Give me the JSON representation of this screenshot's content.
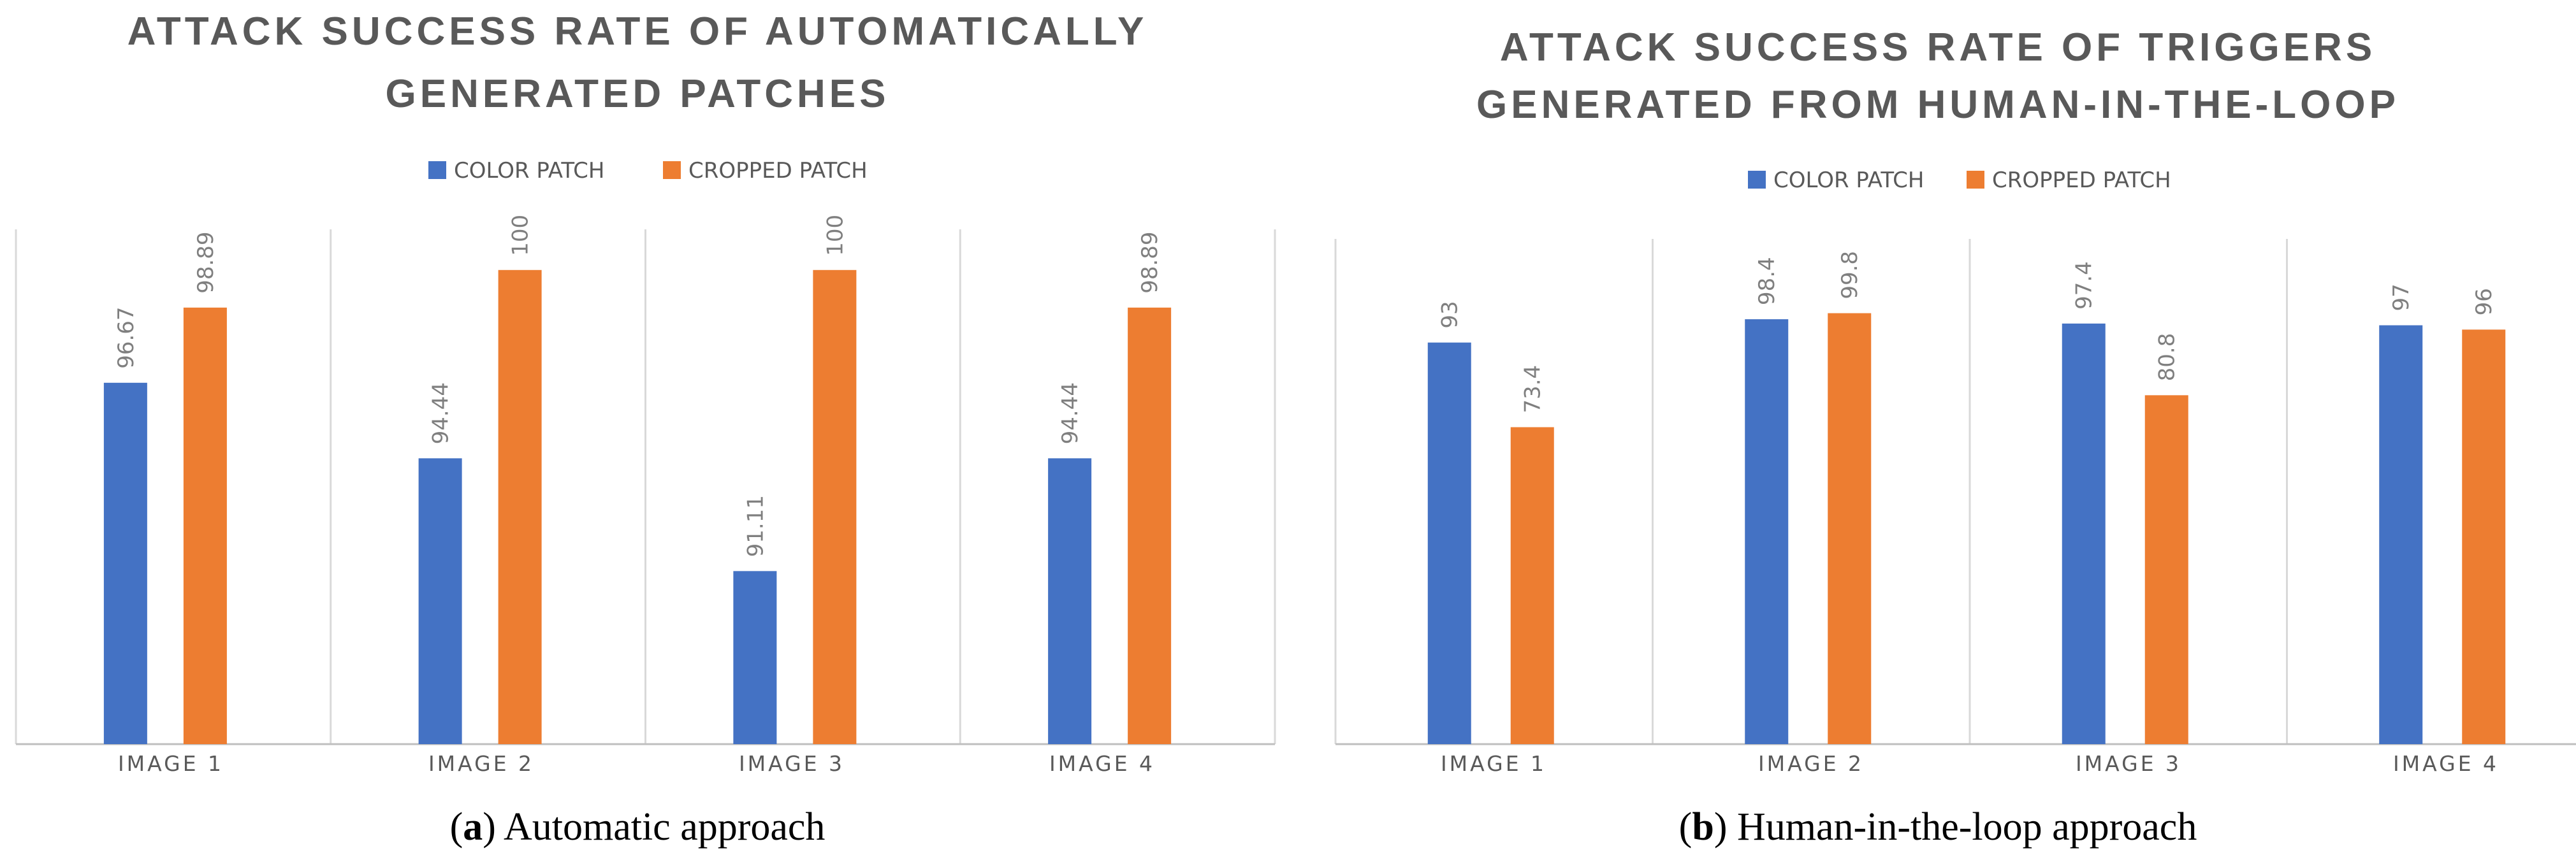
{
  "chart_data": [
    {
      "type": "bar",
      "title_lines": [
        "ATTACK SUCCESS RATE OF AUTOMATICALLY",
        "GENERATED PATCHES"
      ],
      "categories": [
        "IMAGE 1",
        "IMAGE 2",
        "IMAGE 3",
        "IMAGE 4"
      ],
      "series": [
        {
          "name": "COLOR PATCH",
          "color": "#4472c4",
          "values": [
            96.67,
            94.44,
            91.11,
            94.44
          ],
          "labels": [
            "96.67",
            "94.44",
            "91.11",
            "94.44"
          ]
        },
        {
          "name": "CROPPED PATCH",
          "color": "#ed7d31",
          "values": [
            98.89,
            100,
            100,
            98.89
          ],
          "labels": [
            "98.89",
            "100",
            "100",
            "98.89"
          ]
        }
      ],
      "ylim": [
        86,
        101.2
      ],
      "caption": {
        "label": "a",
        "text": " Automatic approach"
      }
    },
    {
      "type": "bar",
      "title_lines": [
        "ATTACK SUCCESS RATE OF TRIGGERS",
        "GENERATED  FROM HUMAN-IN-THE-LOOP"
      ],
      "categories": [
        "IMAGE 1",
        "IMAGE 2",
        "IMAGE 3",
        "IMAGE 4"
      ],
      "series": [
        {
          "name": "COLOR PATCH",
          "color": "#4472c4",
          "values": [
            93,
            98.4,
            97.4,
            97
          ],
          "labels": [
            "93",
            "98.4",
            "97.4",
            "97"
          ]
        },
        {
          "name": "CROPPED PATCH",
          "color": "#ed7d31",
          "values": [
            73.4,
            99.8,
            80.8,
            96
          ],
          "labels": [
            "73.4",
            "99.8",
            "80.8",
            "96"
          ]
        }
      ],
      "ylim": [
        0,
        117
      ],
      "caption": {
        "label": "b",
        "text": " Human-in-the-loop approach"
      }
    }
  ]
}
